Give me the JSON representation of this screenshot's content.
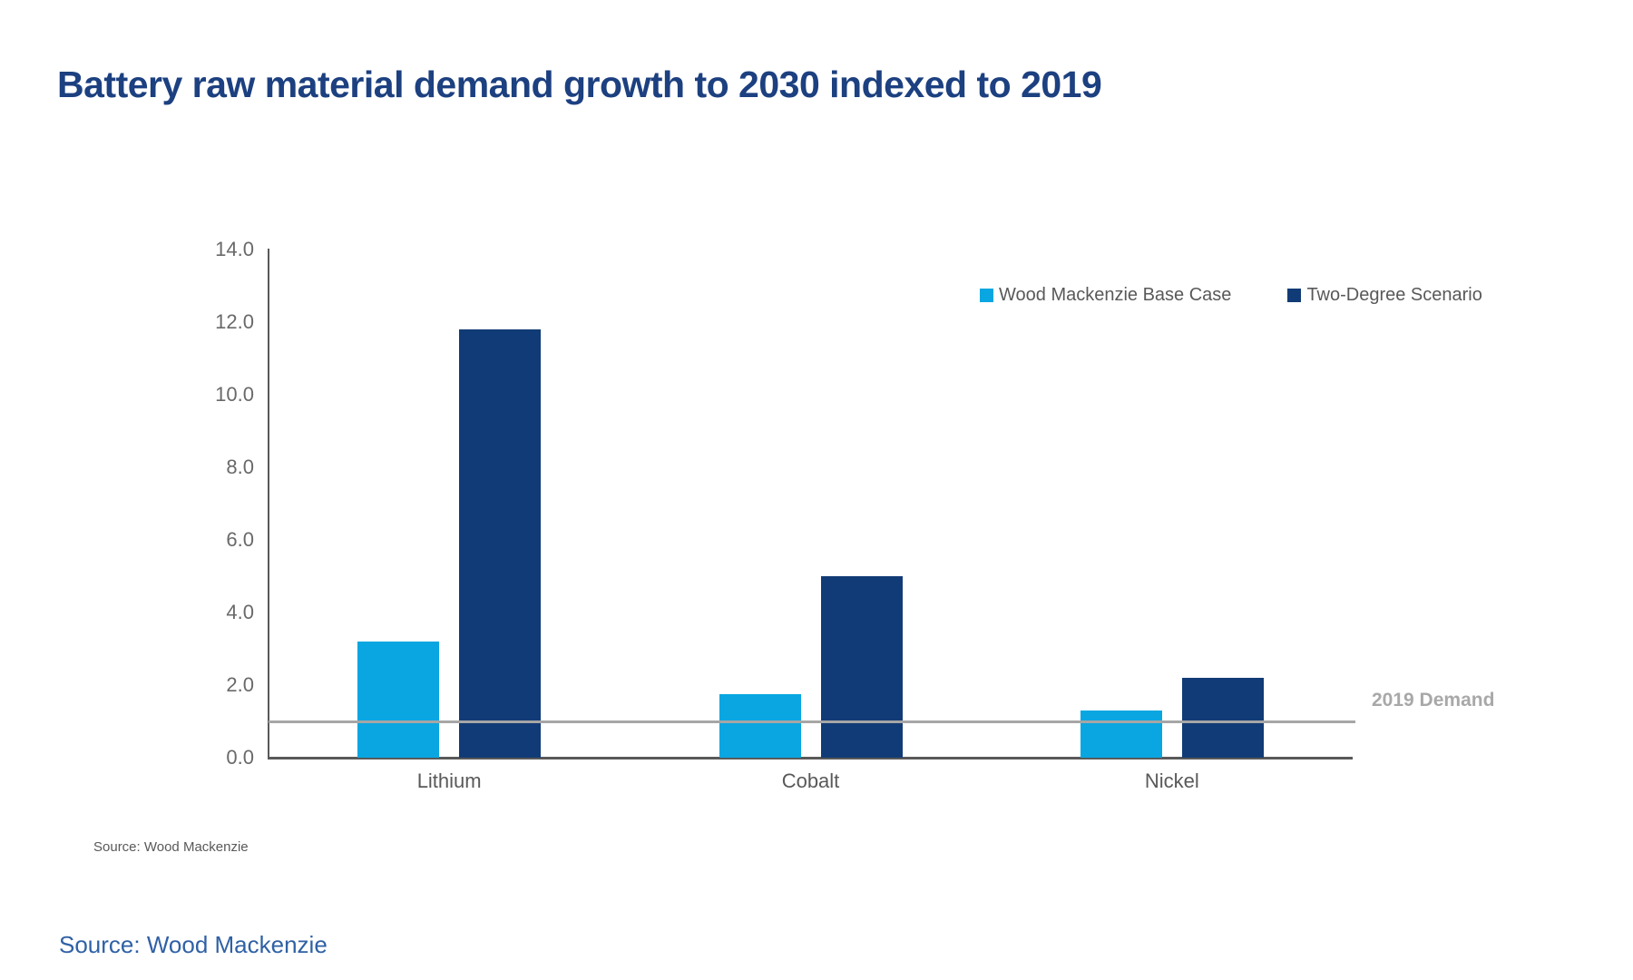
{
  "header": {
    "title": "Battery raw material demand growth to 2030 indexed to 2019"
  },
  "chart_note": {
    "source": "Source: Wood Mackenzie"
  },
  "footer": {
    "source": "Source: Wood Mackenzie"
  },
  "colors": {
    "title": "#1c4080",
    "base_case_blue": "#09a6e1",
    "two_degree_navy": "#113b76",
    "axis_gray": "#595959",
    "tick_label_gray": "#696969",
    "reference_line_gray": "#a6a6a6",
    "footer_source_blue": "#2f61a5"
  },
  "chart_data": {
    "type": "bar",
    "title": "Battery raw material demand growth to 2030 indexed to 2019",
    "categories": [
      "Lithium",
      "Cobalt",
      "Nickel"
    ],
    "series": [
      {
        "name": "Wood Mackenzie Base Case",
        "color": "#09a6e1",
        "values": [
          3.2,
          1.75,
          1.3
        ]
      },
      {
        "name": "Two-Degree Scenario",
        "color": "#113b76",
        "values": [
          11.8,
          5.0,
          2.2
        ]
      }
    ],
    "xlabel": "",
    "ylabel": "",
    "ylim": [
      0,
      14
    ],
    "ytick_step": 2,
    "ytick_labels": [
      "0.0",
      "2.0",
      "4.0",
      "6.0",
      "8.0",
      "10.0",
      "12.0",
      "14.0"
    ],
    "grid": false,
    "legend_position": "top-right",
    "reference_line": {
      "value": 1.0,
      "label": "2019 Demand"
    }
  }
}
